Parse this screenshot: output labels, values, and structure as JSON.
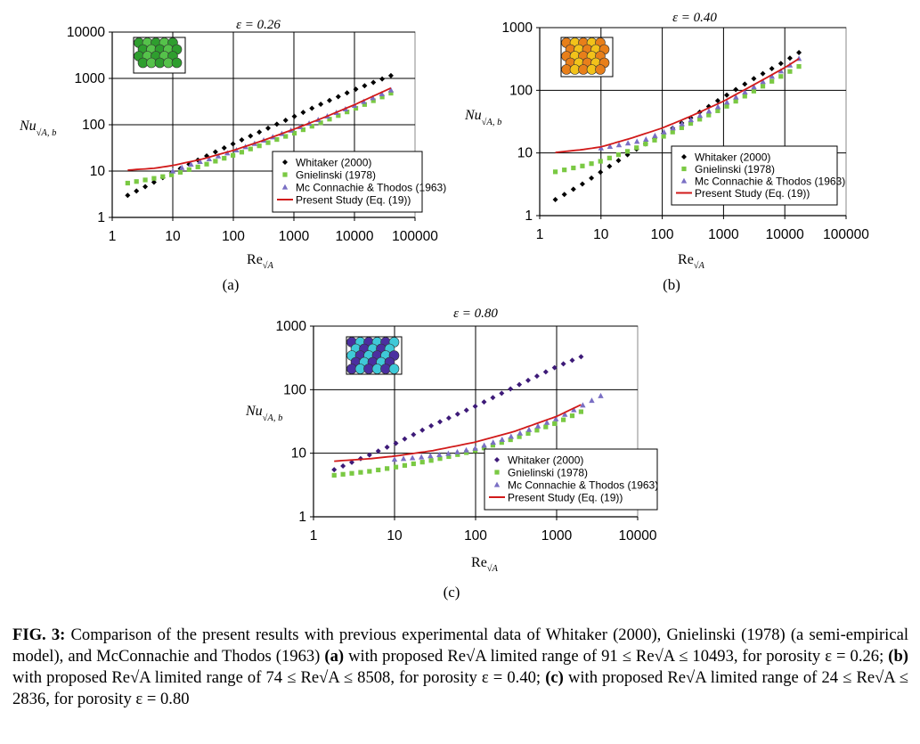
{
  "colors": {
    "whitaker": "#000000",
    "whitaker_c": "#3d1a78",
    "gnielinski": "#7ac943",
    "mcconnachie": "#7a6fc4",
    "present": "#d11a1a",
    "grid": "#000000"
  },
  "chart_data": [
    {
      "id": "a",
      "type": "scatter",
      "title": "ε = 0.26",
      "panel_label": "(a)",
      "ylabel": "Nu",
      "ylabel_sub": "√A, b",
      "xlabel": "Re",
      "xlabel_sub": "√A",
      "log_x": true,
      "log_y": true,
      "xlim": [
        1,
        100000
      ],
      "ylim": [
        1,
        10000
      ],
      "xticks": [
        "1",
        "10",
        "100",
        "1000",
        "10000",
        "100000"
      ],
      "yticks": [
        "1",
        "10",
        "100",
        "1000",
        "10000"
      ],
      "grid": true,
      "legend_position": "lower-right",
      "inset_icon": "green-packed-spheres",
      "inset_colors": [
        "#2e9e2e",
        "#55c24a"
      ],
      "series": [
        {
          "name": "Whitaker (2000)",
          "marker": "diamond",
          "color": "#000000",
          "x": [
            1.8,
            4,
            10,
            30,
            100,
            300,
            1000,
            3000,
            10000,
            40000
          ],
          "y": [
            3.0,
            5.0,
            9.4,
            19,
            39,
            74,
            150,
            290,
            570,
            1150
          ]
        },
        {
          "name": "Gnielinski (1978)",
          "marker": "square",
          "color": "#7ac943",
          "x": [
            1.8,
            5,
            10,
            30,
            100,
            300,
            1000,
            3000,
            10000,
            40000
          ],
          "y": [
            5.5,
            7.0,
            8.4,
            13,
            22,
            37,
            65,
            115,
            220,
            480
          ]
        },
        {
          "name": "Mc Connachie & Thodos (1963)",
          "marker": "triangle",
          "color": "#7a6fc4",
          "x": [
            10,
            20,
            50,
            100,
            300,
            1000,
            3000,
            10000,
            40000
          ],
          "y": [
            10,
            14,
            20,
            27,
            45,
            80,
            140,
            260,
            560
          ]
        },
        {
          "name": "Present Study (Eq. (19))",
          "marker": "line",
          "color": "#d11a1a",
          "x": [
            1.8,
            5,
            10,
            30,
            100,
            300,
            1000,
            3000,
            10000,
            40000
          ],
          "y": [
            10.5,
            11.5,
            13.2,
            18,
            28,
            45,
            80,
            140,
            270,
            620
          ]
        }
      ]
    },
    {
      "id": "b",
      "type": "scatter",
      "title": "ε = 0.40",
      "panel_label": "(b)",
      "ylabel": "Nu",
      "ylabel_sub": "√A, b",
      "xlabel": "Re",
      "xlabel_sub": "√A",
      "log_x": true,
      "log_y": true,
      "xlim": [
        1,
        100000
      ],
      "ylim": [
        1,
        1000
      ],
      "xticks": [
        "1",
        "10",
        "100",
        "1000",
        "10000",
        "100000"
      ],
      "yticks": [
        "1",
        "10",
        "100",
        "1000"
      ],
      "grid": true,
      "legend_position": "lower-right",
      "inset_icon": "orange-packed-spheres",
      "inset_colors": [
        "#e87f1a",
        "#f2c21a"
      ],
      "series": [
        {
          "name": "Whitaker (2000)",
          "marker": "diamond",
          "color": "#000000",
          "x": [
            1.8,
            5,
            10,
            30,
            100,
            300,
            1000,
            3000,
            10000,
            17000
          ],
          "y": [
            1.8,
            3.2,
            5.0,
            10,
            20,
            37,
            78,
            150,
            290,
            400
          ]
        },
        {
          "name": "Gnielinski (1978)",
          "marker": "square",
          "color": "#7ac943",
          "x": [
            1.8,
            5,
            10,
            30,
            100,
            300,
            1000,
            3000,
            10000,
            17000
          ],
          "y": [
            5.0,
            6.2,
            7.4,
            11,
            18,
            30,
            52,
            95,
            180,
            240
          ]
        },
        {
          "name": "Mc Connachie & Thodos (1963)",
          "marker": "triangle",
          "color": "#7a6fc4",
          "x": [
            10,
            20,
            50,
            100,
            300,
            1000,
            3000,
            10000,
            17000
          ],
          "y": [
            12,
            13.5,
            16,
            21,
            34,
            60,
            110,
            220,
            320
          ]
        },
        {
          "name": "Present Study (Eq. (19))",
          "marker": "line",
          "color": "#d11a1a",
          "x": [
            1.8,
            5,
            10,
            30,
            100,
            300,
            1000,
            3000,
            10000,
            17000
          ],
          "y": [
            10.2,
            11.3,
            12.5,
            17,
            25,
            39,
            67,
            120,
            230,
            320
          ]
        }
      ]
    },
    {
      "id": "c",
      "type": "scatter",
      "title": "ε = 0.80",
      "panel_label": "(c)",
      "ylabel": "Nu",
      "ylabel_sub": "√A, b",
      "xlabel": "Re",
      "xlabel_sub": "√A",
      "log_x": true,
      "log_y": true,
      "xlim": [
        1,
        10000
      ],
      "ylim": [
        1,
        1000
      ],
      "xticks": [
        "1",
        "10",
        "100",
        "1000",
        "10000"
      ],
      "yticks": [
        "1",
        "10",
        "100",
        "1000"
      ],
      "grid": true,
      "legend_position": "lower-right",
      "inset_icon": "blue-purple-packed-spheres",
      "inset_colors": [
        "#4b2fa0",
        "#3fc9d8"
      ],
      "series": [
        {
          "name": "Whitaker (2000)",
          "marker": "diamond",
          "color": "#3d1a78",
          "x": [
            1.8,
            5,
            10,
            30,
            100,
            300,
            1000,
            2000
          ],
          "y": [
            5.5,
            9.5,
            14,
            28,
            55,
            110,
            230,
            330
          ]
        },
        {
          "name": "Gnielinski (1978)",
          "marker": "square",
          "color": "#7ac943",
          "x": [
            1.8,
            5,
            10,
            30,
            100,
            300,
            1000,
            2000
          ],
          "y": [
            4.5,
            5.2,
            6.0,
            7.8,
            11,
            17,
            30,
            45
          ]
        },
        {
          "name": "Mc Connachie & Thodos (1963)",
          "marker": "triangle",
          "color": "#7a6fc4",
          "x": [
            10,
            20,
            50,
            100,
            300,
            1000,
            2000,
            3500
          ],
          "y": [
            8,
            8.6,
            10,
            12,
            19,
            35,
            55,
            80
          ]
        },
        {
          "name": "Present Study (Eq. (19))",
          "marker": "line",
          "color": "#d11a1a",
          "x": [
            1.8,
            5,
            10,
            30,
            100,
            300,
            1000,
            2000
          ],
          "y": [
            7.5,
            8.2,
            9.0,
            11,
            15,
            22,
            38,
            58
          ]
        }
      ]
    }
  ],
  "caption": {
    "fig_label": "FIG. 3:",
    "text_1": "Comparison of the present results with previous experimental data of Whitaker (2000), Gnielinski (1978) (a semi-empirical model), and McConnachie and Thodos (1963)",
    "label_a": "(a)",
    "text_a": "with proposed Re√A limited range of 91 ≤ Re√A ≤ 10493, for porosity ε = 0.26;",
    "label_b": "(b)",
    "text_b": "with proposed Re√A limited range of 74 ≤ Re√A ≤ 8508, for porosity ε = 0.40;",
    "label_c": "(c)",
    "text_c": "with proposed Re√A limited range of 24 ≤ Re√A ≤ 2836, for porosity ε = 0.80"
  }
}
